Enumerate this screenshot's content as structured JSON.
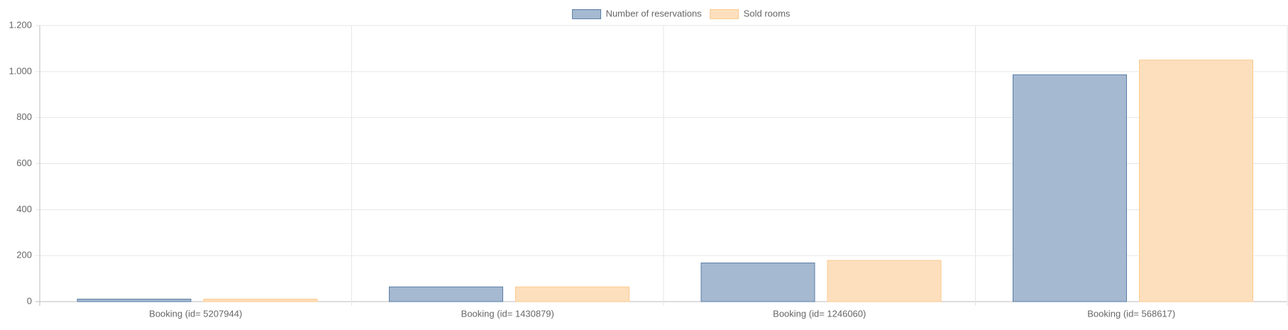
{
  "chart_data": {
    "type": "bar",
    "categories": [
      "Booking (id= 5207944)",
      "Booking (id= 1430879)",
      "Booking (id= 1246060)",
      "Booking (id= 568617)"
    ],
    "series": [
      {
        "name": "Number of reservations",
        "color": "#a5b9d1",
        "border": "#5a7ea6",
        "values": [
          11,
          64,
          168,
          986
        ]
      },
      {
        "name": "Sold rooms",
        "color": "#fddfbd",
        "border": "#fcc98e",
        "values": [
          11,
          64,
          179,
          1050
        ]
      }
    ],
    "ylim": [
      0,
      1200
    ],
    "yticks": [
      0,
      200,
      400,
      600,
      800,
      {
        "value": 1000,
        "label": "1.000"
      },
      {
        "value": 1200,
        "label": "1.200"
      }
    ],
    "grid": true,
    "legend": "top"
  }
}
